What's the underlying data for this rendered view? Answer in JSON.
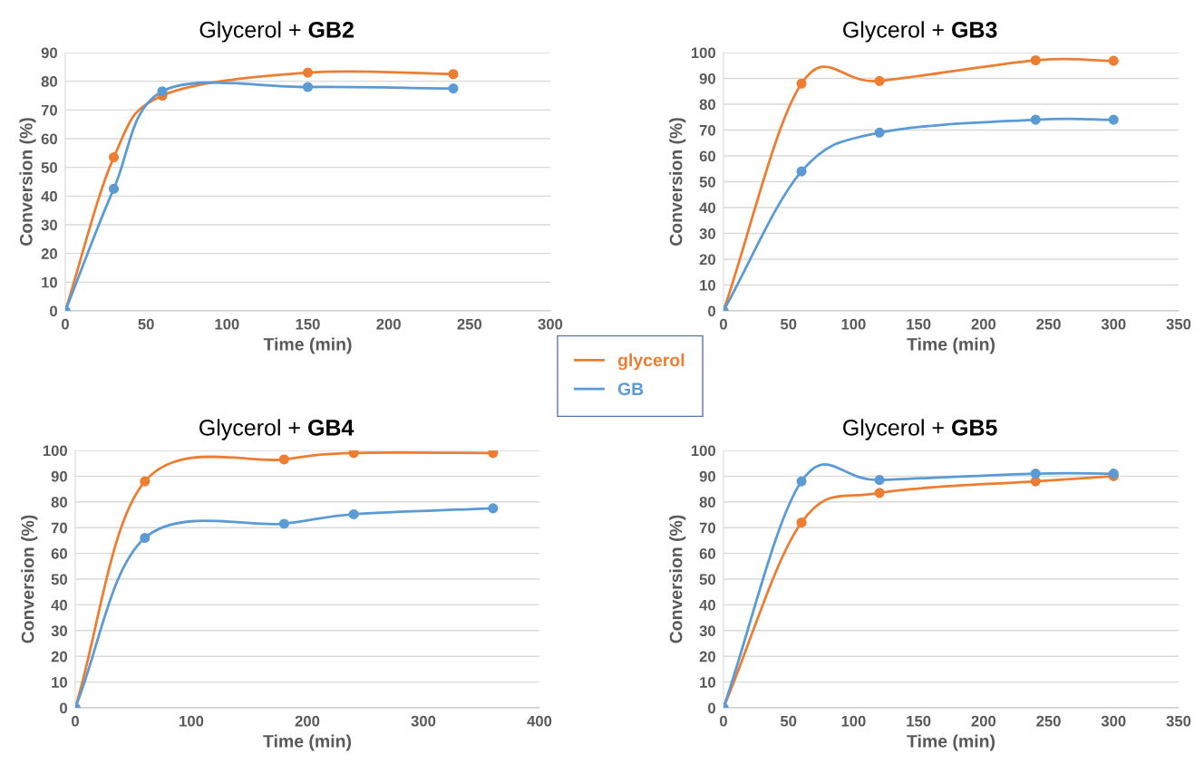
{
  "chart_data": [
    {
      "type": "line",
      "title": "Glycerol + GB2",
      "xlabel": "Time (min)",
      "ylabel": "Conversion (%)",
      "xlim": [
        0,
        300
      ],
      "xticks": [
        0,
        50,
        100,
        150,
        200,
        250,
        300
      ],
      "ylim": [
        0,
        90
      ],
      "yticks": [
        0,
        10,
        20,
        30,
        40,
        50,
        60,
        70,
        80,
        90
      ],
      "grid": "y",
      "marker": "circle",
      "line_style": "solid",
      "legend": "bottom right",
      "x": [
        0,
        30,
        60,
        150,
        240
      ],
      "series": [
        {
          "name": "glycerol",
          "color": "#ed7d31",
          "values": [
            0,
            53.5,
            75,
            83,
            82.5
          ]
        },
        {
          "name": "GB",
          "color": "#5b9bd5",
          "values": [
            0,
            42.5,
            76.5,
            78,
            77.5
          ]
        }
      ]
    },
    {
      "type": "line",
      "title": "Glycerol + GB3",
      "xlabel": "Time (min)",
      "ylabel": "Conversion (%)",
      "xlim": [
        0,
        350
      ],
      "xticks": [
        0,
        50,
        100,
        150,
        200,
        250,
        300,
        350
      ],
      "ylim": [
        0,
        100
      ],
      "yticks": [
        0,
        10,
        20,
        30,
        40,
        50,
        60,
        70,
        80,
        90,
        100
      ],
      "grid": "y",
      "marker": "circle",
      "line_style": "solid",
      "x": [
        0,
        60,
        120,
        240,
        300
      ],
      "series": [
        {
          "color": "#ed7d31",
          "values": [
            0,
            88,
            89,
            97,
            96.8
          ]
        },
        {
          "color": "#5b9bd5",
          "values": [
            0,
            54,
            69,
            74,
            74
          ]
        }
      ]
    },
    {
      "type": "line",
      "title": "Glycerol + GB4",
      "xlabel": "Time (min)",
      "ylabel": "Conversion (%)",
      "xlim": [
        0,
        400
      ],
      "xticks": [
        0,
        100,
        200,
        300,
        400
      ],
      "ylim": [
        0,
        100
      ],
      "yticks": [
        0,
        10,
        20,
        30,
        40,
        50,
        60,
        70,
        80,
        90,
        100
      ],
      "grid": "y",
      "marker": "circle",
      "line_style": "solid",
      "x": [
        0,
        60,
        180,
        240,
        360
      ],
      "series": [
        {
          "color": "#ed7d31",
          "values": [
            0,
            88,
            96.5,
            99,
            99
          ]
        },
        {
          "color": "#5b9bd5",
          "values": [
            0,
            66,
            71.5,
            75.2,
            77.5
          ]
        }
      ]
    },
    {
      "type": "line",
      "title": "Glycerol + GB5",
      "xlabel": "Time (min)",
      "ylabel": "Conversion (%)",
      "xlim": [
        0,
        350
      ],
      "xticks": [
        0,
        50,
        100,
        150,
        200,
        250,
        300,
        350
      ],
      "ylim": [
        0,
        100
      ],
      "yticks": [
        0,
        10,
        20,
        30,
        40,
        50,
        60,
        70,
        80,
        90,
        100
      ],
      "grid": "y",
      "marker": "circle",
      "line_style": "solid",
      "x": [
        0,
        60,
        120,
        240,
        300
      ],
      "series": [
        {
          "color": "#ed7d31",
          "values": [
            0,
            72,
            83.5,
            88,
            90
          ]
        },
        {
          "color": "#5b9bd5",
          "values": [
            0,
            88,
            88.5,
            91,
            91
          ]
        }
      ]
    }
  ]
}
